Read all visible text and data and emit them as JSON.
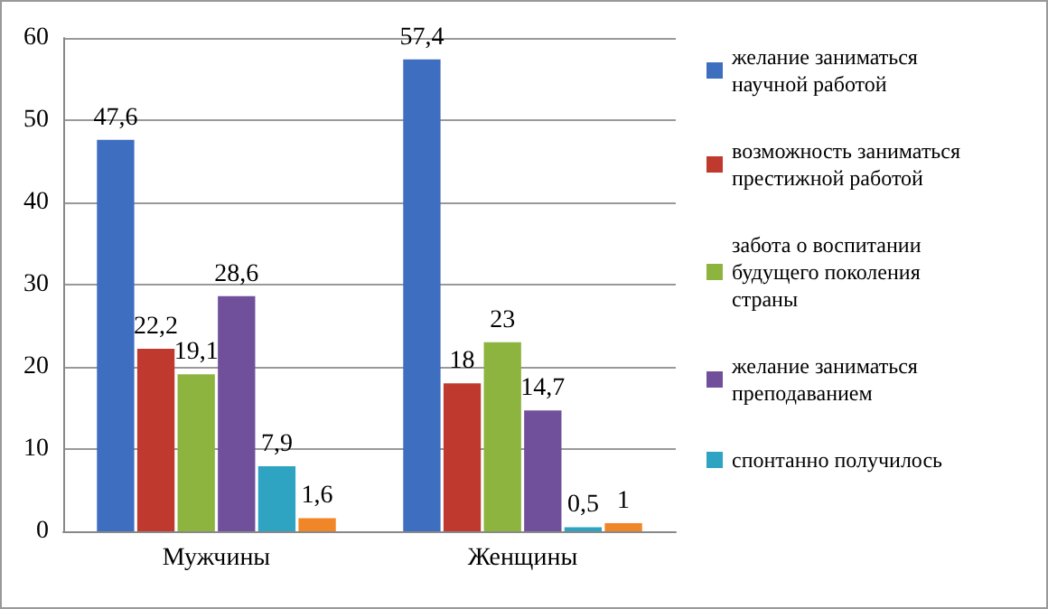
{
  "chart_data": {
    "type": "bar",
    "categories": [
      "Мужчины",
      "Женщины"
    ],
    "series": [
      {
        "name": "желание заниматься научной работой",
        "color": "#3d6ebf",
        "values": [
          47.6,
          57.4
        ],
        "value_labels": [
          "47,6",
          "57,4"
        ]
      },
      {
        "name": "возможность заниматься престижной работой",
        "color": "#c0392f",
        "values": [
          22.2,
          18
        ],
        "value_labels": [
          "22,2",
          "18"
        ]
      },
      {
        "name": "забота о воспитании будущего поколения страны",
        "color": "#8db43f",
        "values": [
          19.1,
          23
        ],
        "value_labels": [
          "19,1",
          "23"
        ]
      },
      {
        "name": "желание заниматься преподаванием",
        "color": "#70509a",
        "values": [
          28.6,
          14.7
        ],
        "value_labels": [
          "28,6",
          "14,7"
        ]
      },
      {
        "name": "спонтанно получилось",
        "color": "#2fa3c2",
        "values": [
          7.9,
          0.5
        ],
        "value_labels": [
          "7,9",
          "0,5"
        ]
      },
      {
        "color": "#f08628",
        "values": [
          1.6,
          1
        ],
        "value_labels": [
          "1,6",
          "1"
        ]
      }
    ],
    "ylim": [
      0,
      60
    ],
    "yticks": [
      0,
      10,
      20,
      30,
      40,
      50,
      60
    ],
    "grid": "y",
    "legend": "right"
  }
}
